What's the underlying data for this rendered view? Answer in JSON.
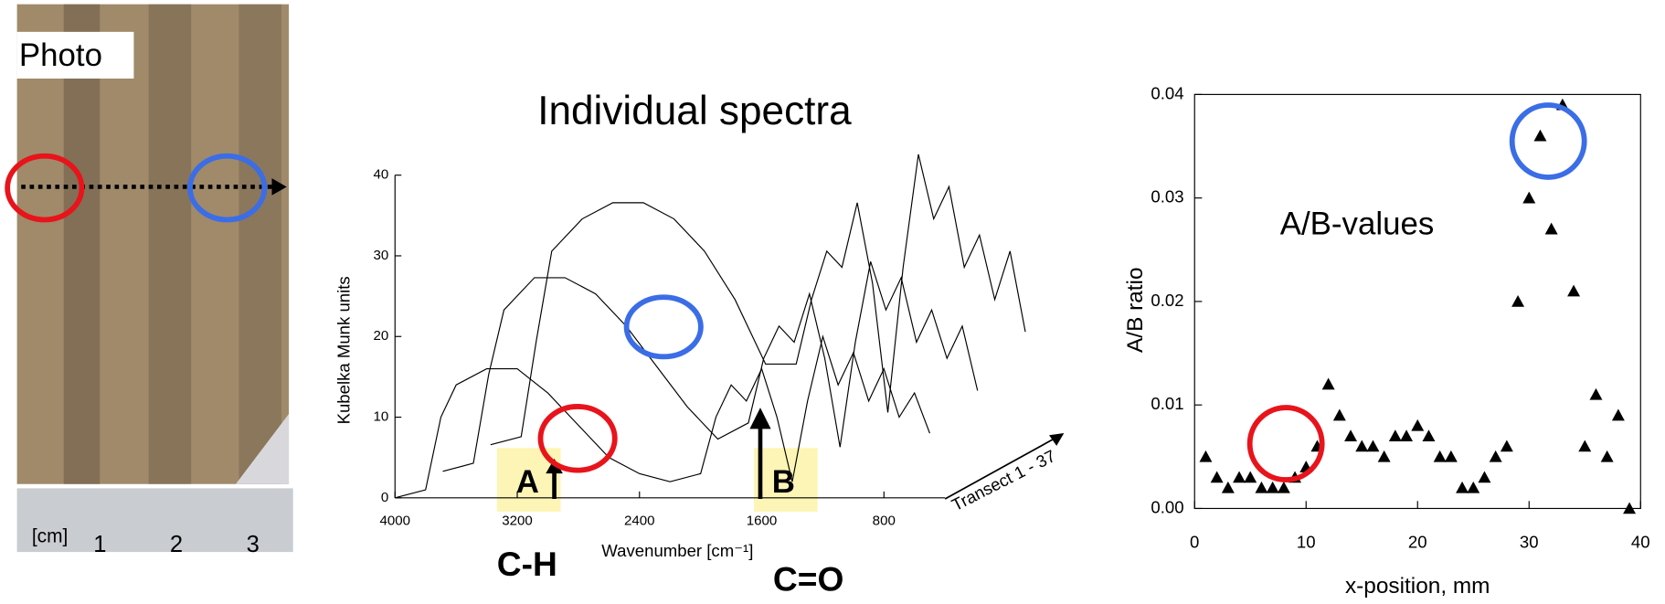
{
  "photo": {
    "label": "Photo",
    "ruler_unit": "[cm]",
    "ruler_numbers": [
      "1",
      "2",
      "3"
    ]
  },
  "chart_data": [
    {
      "type": "waterfall-line",
      "title": "Individual spectra",
      "x_label": "Wavenumber [cm⁻¹]",
      "y_label": "Kubelka Munk units",
      "depth_label": "Transect 1 - 37",
      "annotations": [
        "A",
        "B",
        "C-H",
        "C=O"
      ],
      "x": [
        4000,
        3800,
        3700,
        3600,
        3400,
        3200,
        3000,
        2800,
        2600,
        2400,
        2200,
        2000,
        1900,
        1800,
        1700,
        1600,
        1500,
        1400,
        1300,
        1200,
        1100,
        1000,
        900,
        800,
        700,
        600,
        500
      ],
      "series": [
        {
          "color": "#000000",
          "values": [
            0,
            1,
            10,
            14,
            16,
            16,
            13,
            9,
            5,
            3,
            2,
            3,
            10,
            14,
            12,
            16,
            10,
            2,
            12,
            20,
            14,
            18,
            12,
            16,
            10,
            13,
            8
          ]
        },
        {
          "color": "#000000",
          "values": [
            0,
            1,
            12,
            20,
            24,
            24,
            22,
            18,
            13,
            8,
            4,
            6,
            14,
            18,
            16,
            22,
            14,
            3,
            16,
            26,
            20,
            24,
            16,
            20,
            14,
            18,
            10
          ]
        },
        {
          "color": "#000000",
          "values": [
            0,
            1,
            13,
            24,
            28,
            30,
            30,
            28,
            24,
            18,
            10,
            10,
            18,
            24,
            22,
            30,
            20,
            4,
            22,
            36,
            28,
            32,
            22,
            26,
            18,
            24,
            14
          ]
        }
      ],
      "xlim": [
        4000,
        400
      ],
      "xticks": [
        4000,
        3200,
        2400,
        1600,
        800
      ],
      "ylim": [
        0,
        40
      ],
      "yticks": [
        0,
        10,
        20,
        30,
        40
      ]
    },
    {
      "type": "scatter",
      "title": "A/B-values",
      "x_label": "x-position, mm",
      "y_label": "A/B ratio",
      "color": "#000000",
      "x": [
        1,
        2,
        3,
        4,
        5,
        6,
        7,
        8,
        9,
        10,
        11,
        12,
        13,
        14,
        15,
        16,
        17,
        18,
        19,
        20,
        21,
        22,
        23,
        24,
        25,
        26,
        27,
        28,
        29,
        30,
        31,
        32,
        33,
        34,
        35,
        36,
        37,
        38,
        39
      ],
      "values": [
        0.005,
        0.003,
        0.002,
        0.003,
        0.003,
        0.002,
        0.002,
        0.002,
        0.003,
        0.004,
        0.006,
        0.012,
        0.009,
        0.007,
        0.006,
        0.006,
        0.005,
        0.007,
        0.007,
        0.008,
        0.007,
        0.005,
        0.005,
        0.002,
        0.002,
        0.003,
        0.005,
        0.006,
        0.02,
        0.03,
        0.036,
        0.027,
        0.039,
        0.021,
        0.006,
        0.011,
        0.005,
        0.009,
        0.0
      ],
      "xlim": [
        0,
        40
      ],
      "xticks": [
        0,
        10,
        20,
        30,
        40
      ],
      "ylim": [
        0,
        0.04
      ],
      "yticks": [
        {
          "value": 0,
          "label": "0.00"
        },
        0.01,
        0.02,
        0.03,
        0.04
      ]
    }
  ]
}
